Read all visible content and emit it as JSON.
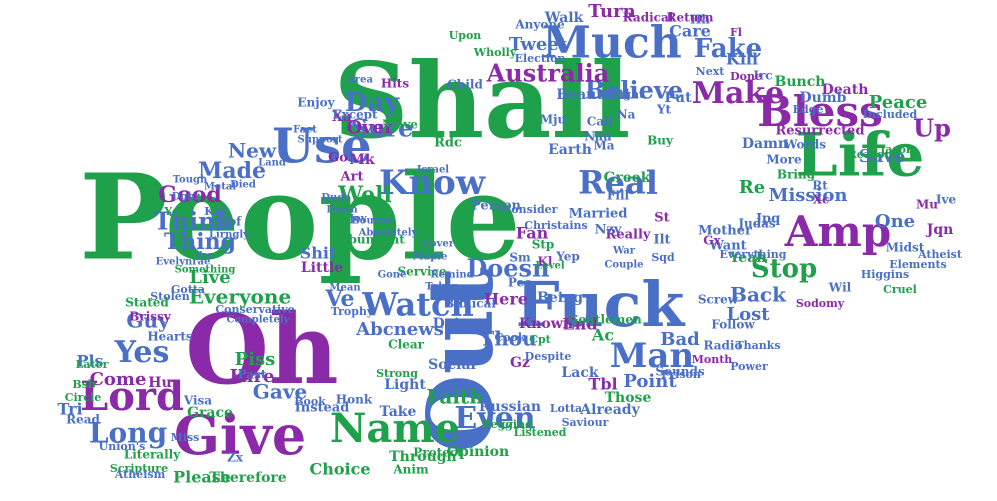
{
  "palette": {
    "green": "#1fa04a",
    "blue": "#4a6fc7",
    "purple": "#8a2aa8",
    "background": "#ffffff"
  },
  "words": [
    {
      "text": "People",
      "color": "green"
    },
    {
      "text": "Shall",
      "color": "green"
    },
    {
      "text": "Oh",
      "color": "purple"
    },
    {
      "text": "Out",
      "color": "blue"
    },
    {
      "text": "Life",
      "color": "green"
    },
    {
      "text": "Fuck",
      "color": "blue"
    },
    {
      "text": "Give",
      "color": "purple"
    },
    {
      "text": "Use",
      "color": "blue"
    },
    {
      "text": "Much",
      "color": "blue"
    },
    {
      "text": "Bless",
      "color": "purple"
    },
    {
      "text": "Amp",
      "color": "purple"
    },
    {
      "text": "Know",
      "color": "blue"
    },
    {
      "text": "Lord",
      "color": "purple"
    },
    {
      "text": "Name",
      "color": "green"
    },
    {
      "text": "Watch",
      "color": "blue"
    },
    {
      "text": "Real",
      "color": "blue"
    },
    {
      "text": "Man",
      "color": "blue"
    },
    {
      "text": "Yes",
      "color": "blue"
    },
    {
      "text": "Make",
      "color": "purple"
    },
    {
      "text": "Even",
      "color": "blue"
    },
    {
      "text": "Long",
      "color": "blue"
    },
    {
      "text": "Believe",
      "color": "blue"
    },
    {
      "text": "Fake",
      "color": "blue"
    },
    {
      "text": "Day",
      "color": "blue"
    },
    {
      "text": "Stop",
      "color": "green"
    },
    {
      "text": "Australia",
      "color": "purple"
    },
    {
      "text": "Doesn",
      "color": "blue"
    },
    {
      "text": "Think",
      "color": "blue"
    },
    {
      "text": "Sure",
      "color": "blue"
    },
    {
      "text": "Up",
      "color": "purple"
    },
    {
      "text": "Ve",
      "color": "blue"
    },
    {
      "text": "Well",
      "color": "green"
    },
    {
      "text": "Made",
      "color": "blue"
    },
    {
      "text": "Thing",
      "color": "blue"
    },
    {
      "text": "Turn",
      "color": "purple"
    },
    {
      "text": "Good",
      "color": "purple"
    },
    {
      "text": "New",
      "color": "blue"
    },
    {
      "text": "Faith",
      "color": "green"
    },
    {
      "text": "Guy",
      "color": "blue"
    },
    {
      "text": "Everyone",
      "color": "green"
    },
    {
      "text": "Back",
      "color": "blue"
    },
    {
      "text": "Over",
      "color": "purple"
    },
    {
      "text": "Gave",
      "color": "blue"
    },
    {
      "text": "Tweet",
      "color": "blue"
    },
    {
      "text": "Kill",
      "color": "blue"
    },
    {
      "text": "Peace",
      "color": "green"
    },
    {
      "text": "Live",
      "color": "green"
    },
    {
      "text": "Come",
      "color": "purple"
    },
    {
      "text": "Hire",
      "color": "purple"
    },
    {
      "text": "Piss",
      "color": "green"
    },
    {
      "text": "Mission",
      "color": "blue"
    },
    {
      "text": "Abcnews",
      "color": "blue"
    },
    {
      "text": "Thou",
      "color": "blue"
    },
    {
      "text": "Bad",
      "color": "blue"
    },
    {
      "text": "Point",
      "color": "blue"
    },
    {
      "text": "Save",
      "color": "blue"
    },
    {
      "text": "One",
      "color": "blue"
    },
    {
      "text": "Care",
      "color": "blue"
    },
    {
      "text": "Walk",
      "color": "blue"
    },
    {
      "text": "Lost",
      "color": "blue"
    },
    {
      "text": "End",
      "color": "purple"
    },
    {
      "text": "Here",
      "color": "purple"
    },
    {
      "text": "Fan",
      "color": "purple"
    },
    {
      "text": "Shit",
      "color": "blue"
    },
    {
      "text": "Little",
      "color": "purple"
    },
    {
      "text": "Grace",
      "color": "green"
    },
    {
      "text": "Please",
      "color": "green"
    },
    {
      "text": "Choice",
      "color": "green"
    },
    {
      "text": "Therefore",
      "color": "green"
    },
    {
      "text": "Already",
      "color": "blue"
    },
    {
      "text": "Tri",
      "color": "blue"
    },
    {
      "text": "Pls",
      "color": "blue"
    },
    {
      "text": "Hu",
      "color": "purple"
    },
    {
      "text": "Death",
      "color": "purple"
    },
    {
      "text": "Dumb",
      "color": "blue"
    },
    {
      "text": "Damn",
      "color": "blue"
    },
    {
      "text": "Earth",
      "color": "blue"
    },
    {
      "text": "Greek",
      "color": "green"
    },
    {
      "text": "Married",
      "color": "blue"
    },
    {
      "text": "Person",
      "color": "blue"
    },
    {
      "text": "Put",
      "color": "blue"
    },
    {
      "text": "Beautiful",
      "color": "blue"
    },
    {
      "text": "Bunch",
      "color": "green"
    },
    {
      "text": "Re",
      "color": "green"
    },
    {
      "text": "Want",
      "color": "blue"
    },
    {
      "text": "Ac",
      "color": "green"
    },
    {
      "text": "Tbl",
      "color": "purple"
    },
    {
      "text": "Lack",
      "color": "blue"
    },
    {
      "text": "Light",
      "color": "blue"
    },
    {
      "text": "Social",
      "color": "blue"
    },
    {
      "text": "Russian",
      "color": "blue"
    },
    {
      "text": "Opinion",
      "color": "green"
    },
    {
      "text": "Through",
      "color": "green"
    },
    {
      "text": "Take",
      "color": "blue"
    },
    {
      "text": "Doing",
      "color": "blue"
    },
    {
      "text": "Being",
      "color": "blue"
    },
    {
      "text": "Known",
      "color": "purple"
    },
    {
      "text": "Those",
      "color": "green"
    },
    {
      "text": "Sounds",
      "color": "blue"
    },
    {
      "text": "Radio",
      "color": "blue"
    },
    {
      "text": "Follow",
      "color": "blue"
    },
    {
      "text": "Screw",
      "color": "blue"
    },
    {
      "text": "Gentlemen",
      "color": "green"
    },
    {
      "text": "Mother",
      "color": "blue"
    },
    {
      "text": "Yeah",
      "color": "green"
    },
    {
      "text": "Really",
      "color": "purple"
    },
    {
      "text": "Words",
      "color": "blue"
    },
    {
      "text": "Bring",
      "color": "green"
    },
    {
      "text": "More",
      "color": "blue"
    },
    {
      "text": "Resurrected",
      "color": "purple"
    },
    {
      "text": "Edge",
      "color": "blue"
    },
    {
      "text": "Ive",
      "color": "blue"
    },
    {
      "text": "Jqn",
      "color": "purple"
    },
    {
      "text": "Mu",
      "color": "purple"
    },
    {
      "text": "Midst",
      "color": "blue"
    },
    {
      "text": "Elements",
      "color": "blue"
    },
    {
      "text": "Higgins",
      "color": "blue"
    },
    {
      "text": "Cruel",
      "color": "green"
    },
    {
      "text": "Wil",
      "color": "blue"
    },
    {
      "text": "Sodomy",
      "color": "purple"
    },
    {
      "text": "Atheist",
      "color": "blue"
    },
    {
      "text": "Jpq",
      "color": "blue"
    },
    {
      "text": "Reason",
      "color": "green"
    },
    {
      "text": "Jason",
      "color": "green"
    },
    {
      "text": "Included",
      "color": "blue"
    },
    {
      "text": "Mk",
      "color": "purple"
    },
    {
      "text": "Art",
      "color": "purple"
    },
    {
      "text": "Go",
      "color": "purple"
    },
    {
      "text": "Kid",
      "color": "blue"
    },
    {
      "text": "Yd",
      "color": "green"
    },
    {
      "text": "Sjbf",
      "color": "blue"
    },
    {
      "text": "Xa",
      "color": "purple"
    },
    {
      "text": "Hits",
      "color": "purple"
    },
    {
      "text": "Enjoy",
      "color": "blue"
    },
    {
      "text": "Except",
      "color": "blue"
    },
    {
      "text": "Move",
      "color": "green"
    },
    {
      "text": "Child",
      "color": "blue"
    },
    {
      "text": "Rdc",
      "color": "green"
    },
    {
      "text": "Fill",
      "color": "blue"
    },
    {
      "text": "Consider",
      "color": "blue"
    },
    {
      "text": "Christains",
      "color": "blue"
    },
    {
      "text": "Abundant",
      "color": "green"
    },
    {
      "text": "Service",
      "color": "green"
    },
    {
      "text": "Biblical",
      "color": "blue"
    },
    {
      "text": "Stp",
      "color": "green"
    },
    {
      "text": "Sm",
      "color": "blue"
    },
    {
      "text": "Yep",
      "color": "blue"
    },
    {
      "text": "Peo",
      "color": "blue"
    },
    {
      "text": "Kl",
      "color": "purple"
    },
    {
      "text": "Nzy",
      "color": "blue"
    },
    {
      "text": "St",
      "color": "purple"
    },
    {
      "text": "Ilt",
      "color": "blue"
    },
    {
      "text": "Gx",
      "color": "purple"
    },
    {
      "text": "Judas",
      "color": "blue"
    },
    {
      "text": "Everything",
      "color": "blue"
    },
    {
      "text": "Sqd",
      "color": "blue"
    },
    {
      "text": "Yt",
      "color": "blue"
    },
    {
      "text": "Irc",
      "color": "blue"
    },
    {
      "text": "Rt",
      "color": "blue"
    },
    {
      "text": "Xc",
      "color": "purple"
    },
    {
      "text": "Hh",
      "color": "blue"
    },
    {
      "text": "Radical",
      "color": "purple"
    },
    {
      "text": "Return",
      "color": "purple"
    },
    {
      "text": "Done",
      "color": "purple"
    },
    {
      "text": "Next",
      "color": "blue"
    },
    {
      "text": "Fl",
      "color": "purple"
    },
    {
      "text": "Election",
      "color": "blue"
    },
    {
      "text": "Anyone",
      "color": "blue"
    },
    {
      "text": "Upon",
      "color": "green"
    },
    {
      "text": "Wholly",
      "color": "green"
    },
    {
      "text": "Mju",
      "color": "blue"
    },
    {
      "text": "Call",
      "color": "blue"
    },
    {
      "text": "Nau",
      "color": "blue"
    },
    {
      "text": "Na",
      "color": "blue"
    },
    {
      "text": "Ma",
      "color": "blue"
    },
    {
      "text": "Buy",
      "color": "green"
    },
    {
      "text": "Right",
      "color": "blue"
    },
    {
      "text": "Stolen",
      "color": "blue"
    },
    {
      "text": "Stated",
      "color": "green"
    },
    {
      "text": "Brissy",
      "color": "purple"
    },
    {
      "text": "Hearts",
      "color": "blue"
    },
    {
      "text": "Later",
      "color": "green"
    },
    {
      "text": "Bsb",
      "color": "green"
    },
    {
      "text": "Circle",
      "color": "green"
    },
    {
      "text": "Read",
      "color": "blue"
    },
    {
      "text": "Literally",
      "color": "green"
    },
    {
      "text": "Union's",
      "color": "blue"
    },
    {
      "text": "Scripture",
      "color": "green"
    },
    {
      "text": "Atheism",
      "color": "blue"
    },
    {
      "text": "Visa",
      "color": "blue"
    },
    {
      "text": "Past",
      "color": "blue"
    },
    {
      "text": "Book",
      "color": "blue"
    },
    {
      "text": "Honk",
      "color": "blue"
    },
    {
      "text": "Instead",
      "color": "blue"
    },
    {
      "text": "Anim",
      "color": "green"
    },
    {
      "text": "Protect",
      "color": "green"
    },
    {
      "text": "Listened",
      "color": "green"
    },
    {
      "text": "Saviour",
      "color": "blue"
    },
    {
      "text": "Lotta",
      "color": "blue"
    },
    {
      "text": "Begging",
      "color": "green"
    },
    {
      "text": "Clear",
      "color": "green"
    },
    {
      "text": "Strong",
      "color": "green"
    },
    {
      "text": "Cook",
      "color": "blue"
    },
    {
      "text": "Gz",
      "color": "purple"
    },
    {
      "text": "Cpt",
      "color": "green"
    },
    {
      "text": "Despite",
      "color": "blue"
    },
    {
      "text": "Prison",
      "color": "blue"
    },
    {
      "text": "Month",
      "color": "purple"
    },
    {
      "text": "Power",
      "color": "blue"
    },
    {
      "text": "Thanks",
      "color": "blue"
    },
    {
      "text": "Miss",
      "color": "blue"
    },
    {
      "text": "Zx",
      "color": "blue"
    },
    {
      "text": "Trophy",
      "color": "blue"
    },
    {
      "text": "Conservative",
      "color": "blue"
    },
    {
      "text": "Completely",
      "color": "blue"
    },
    {
      "text": "Gotta",
      "color": "blue"
    },
    {
      "text": "Something",
      "color": "green"
    },
    {
      "text": "Evelynrae",
      "color": "blue"
    },
    {
      "text": "Lirngly",
      "color": "blue"
    },
    {
      "text": "Yes",
      "color": "blue"
    },
    {
      "text": "Dgbz",
      "color": "blue"
    },
    {
      "text": "Tough",
      "color": "blue"
    },
    {
      "text": "Metal",
      "color": "blue"
    },
    {
      "text": "Died",
      "color": "blue"
    },
    {
      "text": "Land",
      "color": "blue"
    },
    {
      "text": "Fact",
      "color": "blue"
    },
    {
      "text": "Support",
      "color": "blue"
    },
    {
      "text": "Area",
      "color": "blue"
    },
    {
      "text": "Dude",
      "color": "blue"
    },
    {
      "text": "Down",
      "color": "blue"
    },
    {
      "text": "Joy",
      "color": "blue"
    },
    {
      "text": "Absolutely",
      "color": "blue"
    },
    {
      "text": "Maple",
      "color": "blue"
    },
    {
      "text": "Cover",
      "color": "blue"
    },
    {
      "text": "Level",
      "color": "green"
    },
    {
      "text": "Couple",
      "color": "blue"
    },
    {
      "text": "War",
      "color": "blue"
    },
    {
      "text": "Israel",
      "color": "blue"
    },
    {
      "text": "Bourne",
      "color": "blue"
    },
    {
      "text": "Mean",
      "color": "blue"
    },
    {
      "text": "Gone",
      "color": "blue"
    },
    {
      "text": "Taken",
      "color": "blue"
    },
    {
      "text": "Remind",
      "color": "blue"
    }
  ]
}
